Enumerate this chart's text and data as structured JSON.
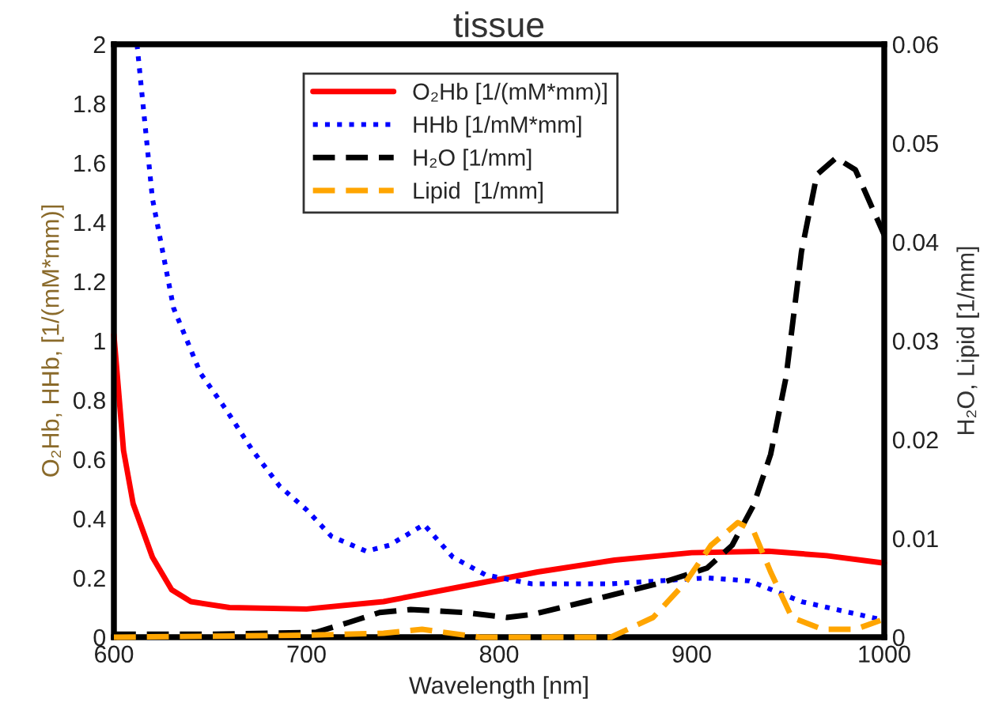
{
  "chart_data": {
    "type": "line",
    "title": "tissue",
    "xlabel": "Wavelength [nm]",
    "ylabel": "O₂Hb, HHb, [1/(mM*mm)]",
    "y2label": "H₂O, Lipid [1/mm]",
    "xlim": [
      600,
      1000
    ],
    "xticks": [
      600,
      700,
      800,
      900,
      1000
    ],
    "ylim": [
      0,
      2
    ],
    "yticks": [
      0,
      0.2,
      0.4,
      0.6,
      0.8,
      1,
      1.2,
      1.4,
      1.6,
      1.8,
      2
    ],
    "y2lim": [
      0,
      0.06
    ],
    "y2ticks": [
      0,
      0.01,
      0.02,
      0.03,
      0.04,
      0.05,
      0.06
    ],
    "grid": false,
    "legend": "top",
    "series": [
      {
        "name": "O₂Hb [1/(mM*mm)]",
        "color": "#ff0000",
        "line_style": "solid",
        "x": [
          600,
          605,
          610,
          620,
          630,
          640,
          660,
          700,
          740,
          780,
          820,
          860,
          900,
          940,
          970,
          1000
        ],
        "values": [
          1.02,
          0.63,
          0.45,
          0.27,
          0.16,
          0.12,
          0.1,
          0.095,
          0.12,
          0.17,
          0.22,
          0.26,
          0.285,
          0.29,
          0.275,
          0.25
        ]
      },
      {
        "name": "HHb [1/mM*mm]",
        "color": "#0000ff",
        "line_style": "dotted",
        "x": [
          612,
          620,
          631,
          645,
          658,
          672,
          686,
          700,
          713,
          731,
          743,
          761,
          776,
          793,
          817,
          858,
          908,
          930,
          957,
          998
        ],
        "values": [
          2.0,
          1.48,
          1.11,
          0.89,
          0.77,
          0.63,
          0.51,
          0.43,
          0.34,
          0.29,
          0.31,
          0.38,
          0.27,
          0.21,
          0.18,
          0.18,
          0.2,
          0.19,
          0.12,
          0.06
        ]
      },
      {
        "name": "H₂O [1/mm]",
        "color": "#000000",
        "line_style": "dashed",
        "axis": "y2",
        "x": [
          600,
          650,
          705,
          722,
          738,
          754,
          782,
          804,
          817,
          845,
          886,
          908,
          921,
          932,
          941,
          949,
          957,
          965,
          975,
          985,
          1000
        ],
        "values": [
          0.0003,
          0.0003,
          0.0005,
          0.0015,
          0.0025,
          0.0028,
          0.0025,
          0.002,
          0.0023,
          0.0036,
          0.0056,
          0.007,
          0.0093,
          0.0133,
          0.0185,
          0.0263,
          0.039,
          0.0468,
          0.0485,
          0.0473,
          0.0407
        ]
      },
      {
        "name": "Lipid  [1/mm]",
        "color": "#ffa500",
        "line_style": "dashed",
        "axis": "y2",
        "x": [
          600,
          700,
          740,
          760,
          790,
          858,
          880,
          897,
          910,
          924,
          932,
          941,
          952,
          968,
          985,
          998
        ],
        "values": [
          0,
          0.0002,
          0.0004,
          0.0008,
          0,
          0,
          0.002,
          0.0056,
          0.0093,
          0.0116,
          0.0108,
          0.0066,
          0.002,
          0.0008,
          0.0008,
          0.0017
        ]
      }
    ]
  }
}
